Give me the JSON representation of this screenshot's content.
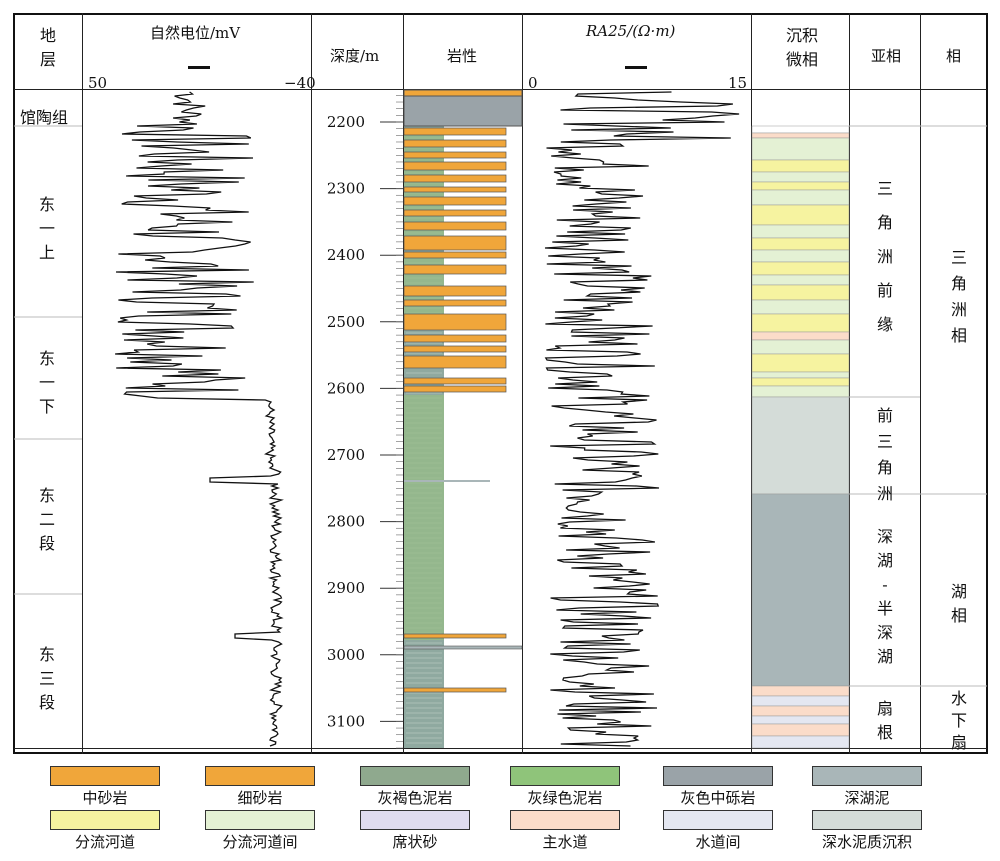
{
  "headers": {
    "formation": "地\n层",
    "sp": "自然电位/mV",
    "sp_left": "50",
    "sp_right": "−40",
    "depth": "深度/m",
    "lithology": "岩性",
    "ra25": "RA25/(Ω·m)",
    "ra25_left": "0",
    "ra25_right": "15",
    "microfacies": "沉积\n微相",
    "subfacies": "亚相",
    "facies": "相"
  },
  "formations": [
    "馆陶组",
    "东一上",
    "东一下",
    "东二段",
    "东三段"
  ],
  "depth_ticks": [
    "2200",
    "2300",
    "2400",
    "2500",
    "2600",
    "2700",
    "2800",
    "2900",
    "3000",
    "3100"
  ],
  "subfacies": [
    "三角洲前缘",
    "前三角洲",
    "深湖-半深湖",
    "扇根"
  ],
  "facies": [
    "三角洲相",
    "湖相",
    "水下扇"
  ],
  "legend": [
    {
      "label": "中砂岩",
      "color": "#f0a63a"
    },
    {
      "label": "细砂岩",
      "color": "#f0a63a"
    },
    {
      "label": "灰褐色泥岩",
      "color": "#8fa98e"
    },
    {
      "label": "灰绿色泥岩",
      "color": "#8fc47a"
    },
    {
      "label": "灰色中砾岩",
      "color": "#9aa3a8"
    },
    {
      "label": "深湖泥",
      "color": "#a9b6b8"
    },
    {
      "label": "分流河道",
      "color": "#f6f3a0"
    },
    {
      "label": "分流河道间",
      "color": "#e4f1d4"
    },
    {
      "label": "席状砂",
      "color": "#e0dcef"
    },
    {
      "label": "主水道",
      "color": "#fbdcc9"
    },
    {
      "label": "水道间",
      "color": "#e4e7f1"
    },
    {
      "label": "深水泥质沉积",
      "color": "#d4dcd8"
    }
  ]
}
